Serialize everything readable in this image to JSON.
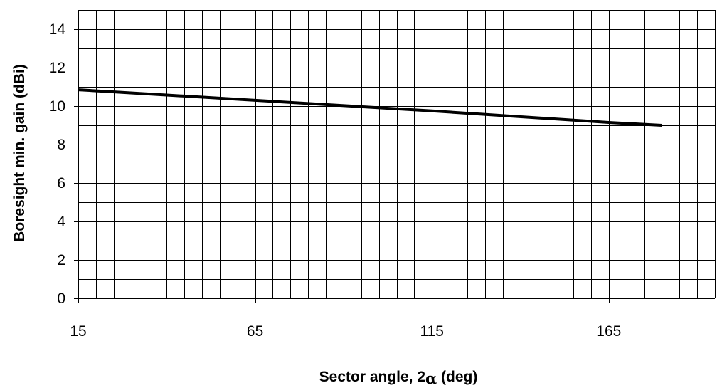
{
  "chart_data": {
    "type": "line",
    "title": "",
    "xlabel": {
      "prefix": "Sector angle, 2",
      "symbol": "α",
      "suffix": " (deg)"
    },
    "ylabel": "Boresight min. gain (dBi)",
    "xlim": [
      15,
      195
    ],
    "ylim": [
      0,
      15
    ],
    "x_ticks": [
      15,
      65,
      115,
      165
    ],
    "y_ticks": [
      0,
      2,
      4,
      6,
      8,
      10,
      12,
      14
    ],
    "x_minor_step": 5,
    "y_minor_step": 1,
    "grid": true,
    "series": [
      {
        "color": "#000000",
        "points": [
          {
            "x": 15,
            "y": 10.85
          },
          {
            "x": 65,
            "y": 10.3
          },
          {
            "x": 115,
            "y": 9.75
          },
          {
            "x": 165,
            "y": 9.15
          },
          {
            "x": 180,
            "y": 9.0
          }
        ]
      }
    ]
  }
}
